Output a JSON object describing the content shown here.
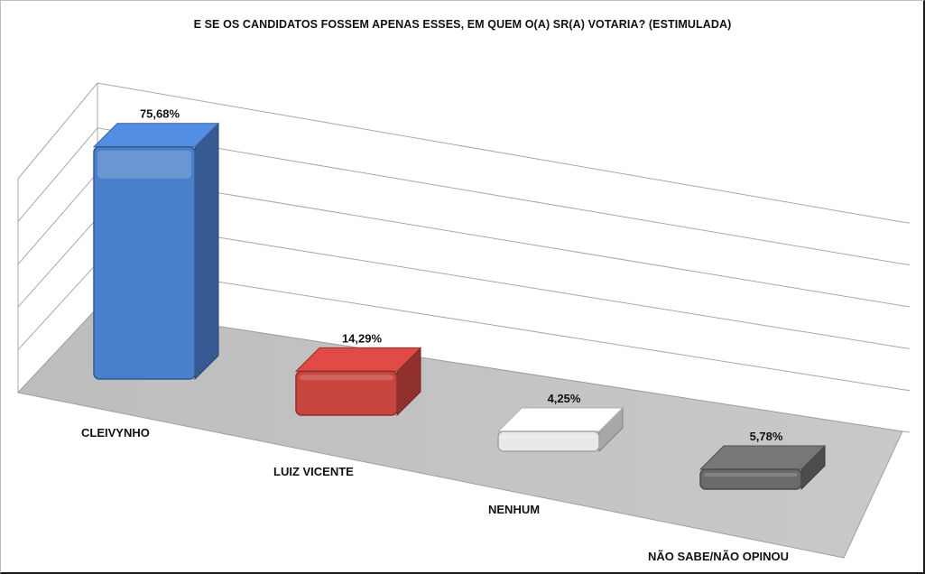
{
  "chart_data": {
    "type": "bar",
    "title": "E SE OS CANDIDATOS FOSSEM APENAS ESSES, EM QUEM O(A) SR(A) VOTARIA? (ESTIMULADA)",
    "categories": [
      "CLEIVYNHO",
      "LUIZ VICENTE",
      "NENHUM",
      "NÃO SABE/NÃO OPINOU"
    ],
    "values": [
      75.68,
      14.29,
      4.25,
      5.78
    ],
    "value_labels": [
      "75,68%",
      "14,29%",
      "4,25%",
      "5,78%"
    ],
    "colors": [
      "#4a7fcb",
      "#c8443e",
      "#e9e9e9",
      "#6a6a6a"
    ],
    "ylim": [
      0,
      100
    ],
    "grid": true,
    "three_d": true,
    "legend": "none"
  }
}
